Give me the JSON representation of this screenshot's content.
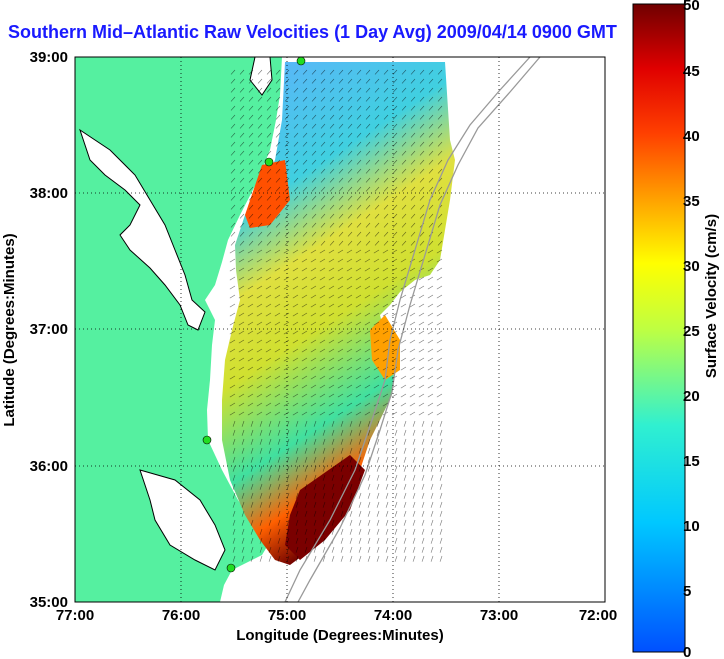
{
  "title": "Southern Mid–Atlantic Raw Velocities (1 Day Avg) 2009/04/14 0900 GMT",
  "map": {
    "x_axis_label": "Longitude (Degrees:Minutes)",
    "y_axis_label": "Latitude (Degrees:Minutes)",
    "lon_ticks": [
      "77:00",
      "76:00",
      "75:00",
      "74:00",
      "73:00",
      "72:00"
    ],
    "lat_ticks": [
      "39:00",
      "38:00",
      "37:00",
      "36:00",
      "35:00"
    ],
    "lon_range": [
      -77,
      -72
    ],
    "lat_range": [
      35,
      39
    ],
    "grid": "dotted"
  },
  "colorbar": {
    "label": "Surface Velocity (cm/s)",
    "ticks": [
      "50",
      "45",
      "40",
      "35",
      "30",
      "25",
      "20",
      "15",
      "10",
      "5",
      "0"
    ],
    "range": [
      0,
      50
    ],
    "colormap": [
      "#0000ff",
      "#00ffff",
      "#ffff00",
      "#ff8000",
      "#ff0000",
      "#800000"
    ]
  },
  "colors": {
    "land": "#55f0a0",
    "water": "#ffffff",
    "coastline": "#000000",
    "stations": "#22dd22",
    "bathymetry": "#999999"
  }
}
